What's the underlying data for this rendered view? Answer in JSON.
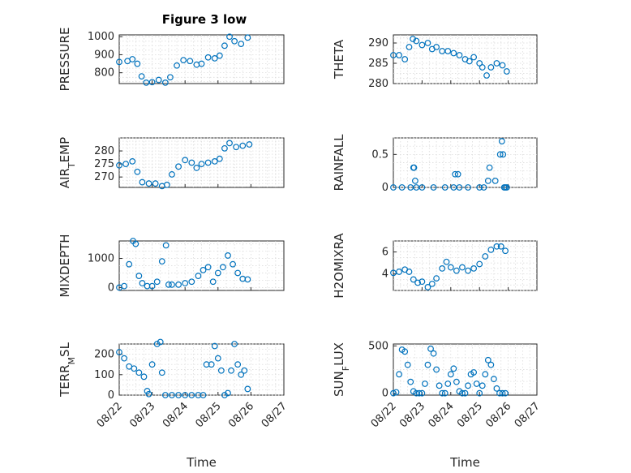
{
  "figure_title": "Figure 3 low",
  "colors": {
    "marker": "#0072bd",
    "axis": "#262626",
    "grid": "#d6d6d6"
  },
  "chart_data": [
    {
      "type": "scatter",
      "title": "Figure 3 low",
      "ylabel": "PRESSURE",
      "xlabel": "",
      "ylim": [
        740,
        1010
      ],
      "yticks": [
        800,
        900,
        1000
      ],
      "grid": true,
      "legend": "none",
      "xlim": [
        22,
        27
      ],
      "xticks": [
        "08/22",
        "08/23",
        "08/24",
        "08/25",
        "08/26",
        "08/27"
      ],
      "series": [
        {
          "x": [
            22,
            22.25,
            22.4,
            22.55,
            22.68,
            22.82,
            23,
            23.2,
            23.4,
            23.55,
            23.75,
            23.95,
            24.15,
            24.35,
            24.5,
            24.7,
            24.9,
            25.05,
            25.2,
            25.35,
            25.5,
            25.7,
            25.9
          ],
          "y": [
            860,
            865,
            875,
            850,
            780,
            745,
            748,
            760,
            745,
            775,
            840,
            870,
            865,
            845,
            850,
            885,
            880,
            895,
            950,
            1000,
            975,
            960,
            995
          ]
        }
      ]
    },
    {
      "type": "scatter",
      "title": "",
      "ylabel": "THETA",
      "xlabel": "",
      "ylim": [
        280,
        292
      ],
      "yticks": [
        280,
        285,
        290
      ],
      "grid": true,
      "legend": "none",
      "xlim": [
        22,
        27
      ],
      "xticks": [
        "08/22",
        "08/23",
        "08/24",
        "08/25",
        "08/26",
        "08/27"
      ],
      "series": [
        {
          "x": [
            22,
            22.2,
            22.4,
            22.55,
            22.68,
            22.8,
            23,
            23.2,
            23.35,
            23.5,
            23.7,
            23.9,
            24.1,
            24.3,
            24.5,
            24.65,
            24.8,
            25,
            25.1,
            25.25,
            25.4,
            25.6,
            25.8,
            25.95
          ],
          "y": [
            287,
            287,
            286,
            289,
            291,
            290.5,
            289.5,
            290,
            288.5,
            289,
            288,
            288,
            287.5,
            287,
            286,
            285.5,
            286.5,
            285,
            284,
            282,
            284,
            285,
            284.5,
            283
          ]
        }
      ]
    },
    {
      "type": "scatter",
      "title": "",
      "ylabel": "AIR_TEMP",
      "xlabel": "",
      "ylim": [
        266,
        285
      ],
      "yticks": [
        270,
        275,
        280
      ],
      "grid": true,
      "legend": "none",
      "xlim": [
        22,
        27
      ],
      "xticks": [
        "08/22",
        "08/23",
        "08/24",
        "08/25",
        "08/26",
        "08/27"
      ],
      "series": [
        {
          "x": [
            22,
            22.2,
            22.4,
            22.55,
            22.7,
            22.9,
            23.1,
            23.3,
            23.45,
            23.6,
            23.8,
            24,
            24.2,
            24.35,
            24.5,
            24.7,
            24.9,
            25.05,
            25.2,
            25.35,
            25.55,
            25.75,
            25.95
          ],
          "y": [
            274.5,
            275,
            276,
            272,
            268,
            267.5,
            267.5,
            266.5,
            267,
            271,
            274,
            276.5,
            275.5,
            273.5,
            275,
            275.5,
            276,
            277,
            281,
            283,
            281.5,
            282,
            282.5
          ]
        }
      ]
    },
    {
      "type": "scatter",
      "title": "",
      "ylabel": "RAINFALL",
      "xlabel": "",
      "ylim": [
        0,
        0.75
      ],
      "yticks": [
        0,
        0.5
      ],
      "grid": true,
      "legend": "none",
      "xlim": [
        22,
        27
      ],
      "xticks": [
        "08/22",
        "08/23",
        "08/24",
        "08/25",
        "08/26",
        "08/27"
      ],
      "series": [
        {
          "x": [
            22,
            22.3,
            22.6,
            22.7,
            22.72,
            22.76,
            22.8,
            23,
            23.4,
            23.8,
            24.1,
            24.15,
            24.25,
            24.3,
            24.6,
            25,
            25.15,
            25.3,
            25.35,
            25.55,
            25.72,
            25.78,
            25.82,
            25.86,
            25.9,
            25.95
          ],
          "y": [
            0,
            0,
            0,
            0.3,
            0.3,
            0.1,
            0,
            0,
            0,
            0,
            0,
            0.2,
            0.2,
            0,
            0,
            0,
            0,
            0.1,
            0.3,
            0.1,
            0.5,
            0.7,
            0.5,
            0,
            0,
            0
          ]
        }
      ]
    },
    {
      "type": "scatter",
      "title": "",
      "ylabel": "MIXDEPTH",
      "xlabel": "",
      "ylim": [
        -100,
        1600
      ],
      "yticks": [
        0,
        1000
      ],
      "grid": true,
      "legend": "none",
      "xlim": [
        22,
        27
      ],
      "xticks": [
        "08/22",
        "08/23",
        "08/24",
        "08/25",
        "08/26",
        "08/27"
      ],
      "series": [
        {
          "x": [
            22,
            22.15,
            22.3,
            22.42,
            22.5,
            22.6,
            22.7,
            22.85,
            23,
            23.15,
            23.3,
            23.42,
            23.5,
            23.6,
            23.8,
            24,
            24.2,
            24.4,
            24.55,
            24.7,
            24.85,
            25,
            25.15,
            25.3,
            25.45,
            25.6,
            25.75,
            25.9
          ],
          "y": [
            0,
            50,
            800,
            1600,
            1500,
            400,
            150,
            50,
            50,
            200,
            900,
            1450,
            100,
            100,
            100,
            150,
            200,
            400,
            600,
            700,
            200,
            500,
            700,
            1100,
            800,
            500,
            300,
            280
          ]
        }
      ]
    },
    {
      "type": "scatter",
      "title": "",
      "ylabel": "H2OMIXRA",
      "xlabel": "",
      "ylim": [
        2.5,
        7
      ],
      "yticks": [
        4,
        6
      ],
      "grid": true,
      "legend": "none",
      "xlim": [
        22,
        27
      ],
      "xticks": [
        "08/22",
        "08/23",
        "08/24",
        "08/25",
        "08/26",
        "08/27"
      ],
      "series": [
        {
          "x": [
            22,
            22.2,
            22.4,
            22.55,
            22.7,
            22.85,
            23,
            23.2,
            23.35,
            23.5,
            23.7,
            23.85,
            24,
            24.2,
            24.4,
            24.6,
            24.8,
            25,
            25.2,
            25.4,
            25.6,
            25.75,
            25.9
          ],
          "y": [
            4.1,
            4.2,
            4.4,
            4.2,
            3.5,
            3.2,
            3.3,
            2.8,
            3.1,
            3.6,
            4.5,
            5.1,
            4.6,
            4.3,
            4.6,
            4.3,
            4.5,
            4.9,
            5.6,
            6.2,
            6.5,
            6.5,
            6.1
          ]
        }
      ]
    },
    {
      "type": "scatter",
      "title": "",
      "ylabel": "TERR_MSL",
      "xlabel": "Time",
      "ylim": [
        0,
        250
      ],
      "yticks": [
        0,
        100,
        200
      ],
      "grid": true,
      "legend": "none",
      "xlim": [
        22,
        27
      ],
      "xticks": [
        "08/22",
        "08/23",
        "08/24",
        "08/25",
        "08/26",
        "08/27"
      ],
      "series": [
        {
          "x": [
            22,
            22.15,
            22.3,
            22.45,
            22.6,
            22.75,
            22.85,
            22.9,
            23,
            23.15,
            23.25,
            23.3,
            23.4,
            23.6,
            23.8,
            24,
            24.2,
            24.4,
            24.55,
            24.65,
            24.8,
            24.9,
            25,
            25.1,
            25.2,
            25.3,
            25.4,
            25.5,
            25.6,
            25.7,
            25.8,
            25.9
          ],
          "y": [
            210,
            180,
            140,
            130,
            110,
            90,
            20,
            5,
            150,
            250,
            260,
            110,
            0,
            0,
            0,
            0,
            0,
            0,
            0,
            150,
            150,
            240,
            180,
            120,
            0,
            10,
            120,
            250,
            150,
            100,
            120,
            30
          ]
        }
      ]
    },
    {
      "type": "scatter",
      "title": "",
      "ylabel": "SUN_FLUX",
      "xlabel": "Time",
      "ylim": [
        -20,
        520
      ],
      "yticks": [
        0,
        500
      ],
      "grid": true,
      "legend": "none",
      "xlim": [
        22,
        27
      ],
      "xticks": [
        "08/22",
        "08/23",
        "08/24",
        "08/25",
        "08/26",
        "08/27"
      ],
      "series": [
        {
          "x": [
            22,
            22.1,
            22.2,
            22.3,
            22.4,
            22.5,
            22.6,
            22.7,
            22.8,
            22.9,
            23,
            23.1,
            23.2,
            23.3,
            23.4,
            23.5,
            23.6,
            23.7,
            23.8,
            23.9,
            24,
            24.1,
            24.2,
            24.3,
            24.4,
            24.5,
            24.6,
            24.7,
            24.8,
            24.9,
            25,
            25.1,
            25.2,
            25.3,
            25.4,
            25.5,
            25.6,
            25.7,
            25.8,
            25.9
          ],
          "y": [
            0,
            10,
            200,
            460,
            440,
            300,
            120,
            20,
            0,
            0,
            0,
            100,
            300,
            470,
            420,
            250,
            80,
            0,
            0,
            100,
            200,
            260,
            120,
            20,
            0,
            0,
            80,
            200,
            220,
            100,
            0,
            80,
            200,
            350,
            300,
            150,
            50,
            0,
            0,
            0
          ]
        }
      ]
    }
  ]
}
